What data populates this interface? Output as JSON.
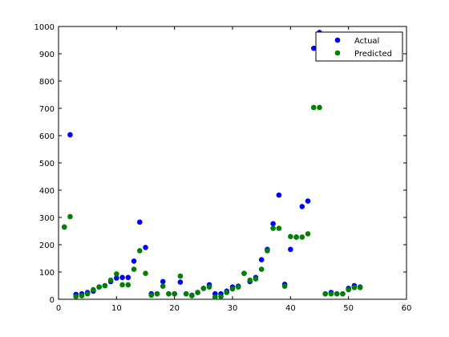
{
  "chart_data": {
    "type": "scatter",
    "title": "",
    "xlabel": "",
    "ylabel": "",
    "xlim": [
      0,
      60
    ],
    "ylim": [
      0,
      1000
    ],
    "xticks": [
      0,
      10,
      20,
      30,
      40,
      50,
      60
    ],
    "yticks": [
      0,
      100,
      200,
      300,
      400,
      500,
      600,
      700,
      800,
      900,
      1000
    ],
    "grid": false,
    "legend_position": "top-right",
    "series": [
      {
        "name": "Actual",
        "color": "#0000ff",
        "points": [
          [
            1,
            265
          ],
          [
            2,
            603
          ],
          [
            3,
            18
          ],
          [
            4,
            20
          ],
          [
            5,
            25
          ],
          [
            6,
            30
          ],
          [
            7,
            45
          ],
          [
            8,
            50
          ],
          [
            9,
            65
          ],
          [
            10,
            78
          ],
          [
            11,
            80
          ],
          [
            12,
            80
          ],
          [
            13,
            140
          ],
          [
            14,
            283
          ],
          [
            15,
            190
          ],
          [
            16,
            20
          ],
          [
            17,
            20
          ],
          [
            18,
            65
          ],
          [
            19,
            20
          ],
          [
            20,
            20
          ],
          [
            21,
            63
          ],
          [
            22,
            20
          ],
          [
            23,
            15
          ],
          [
            24,
            25
          ],
          [
            25,
            40
          ],
          [
            26,
            53
          ],
          [
            27,
            20
          ],
          [
            28,
            20
          ],
          [
            29,
            30
          ],
          [
            30,
            45
          ],
          [
            31,
            48
          ],
          [
            32,
            95
          ],
          [
            33,
            65
          ],
          [
            34,
            80
          ],
          [
            35,
            145
          ],
          [
            36,
            183
          ],
          [
            37,
            277
          ],
          [
            38,
            382
          ],
          [
            39,
            55
          ],
          [
            40,
            183
          ],
          [
            41,
            228
          ],
          [
            42,
            340
          ],
          [
            43,
            360
          ],
          [
            44,
            920
          ],
          [
            45,
            978
          ],
          [
            46,
            20
          ],
          [
            47,
            25
          ],
          [
            48,
            20
          ],
          [
            49,
            20
          ],
          [
            50,
            40
          ],
          [
            51,
            50
          ],
          [
            52,
            45
          ]
        ]
      },
      {
        "name": "Predicted",
        "color": "#008000",
        "points": [
          [
            1,
            265
          ],
          [
            2,
            303
          ],
          [
            3,
            10
          ],
          [
            4,
            13
          ],
          [
            5,
            20
          ],
          [
            6,
            35
          ],
          [
            7,
            45
          ],
          [
            8,
            50
          ],
          [
            9,
            70
          ],
          [
            10,
            93
          ],
          [
            11,
            53
          ],
          [
            12,
            53
          ],
          [
            13,
            110
          ],
          [
            14,
            178
          ],
          [
            15,
            95
          ],
          [
            16,
            15
          ],
          [
            17,
            20
          ],
          [
            18,
            48
          ],
          [
            19,
            20
          ],
          [
            20,
            20
          ],
          [
            21,
            85
          ],
          [
            22,
            20
          ],
          [
            23,
            13
          ],
          [
            24,
            25
          ],
          [
            25,
            40
          ],
          [
            26,
            45
          ],
          [
            27,
            8
          ],
          [
            28,
            10
          ],
          [
            29,
            25
          ],
          [
            30,
            38
          ],
          [
            31,
            45
          ],
          [
            32,
            95
          ],
          [
            33,
            70
          ],
          [
            34,
            75
          ],
          [
            35,
            110
          ],
          [
            36,
            178
          ],
          [
            37,
            260
          ],
          [
            38,
            260
          ],
          [
            39,
            48
          ],
          [
            40,
            230
          ],
          [
            41,
            228
          ],
          [
            42,
            228
          ],
          [
            43,
            240
          ],
          [
            44,
            703
          ],
          [
            45,
            703
          ],
          [
            46,
            20
          ],
          [
            47,
            20
          ],
          [
            48,
            20
          ],
          [
            49,
            20
          ],
          [
            50,
            35
          ],
          [
            51,
            43
          ],
          [
            52,
            43
          ]
        ]
      }
    ]
  }
}
